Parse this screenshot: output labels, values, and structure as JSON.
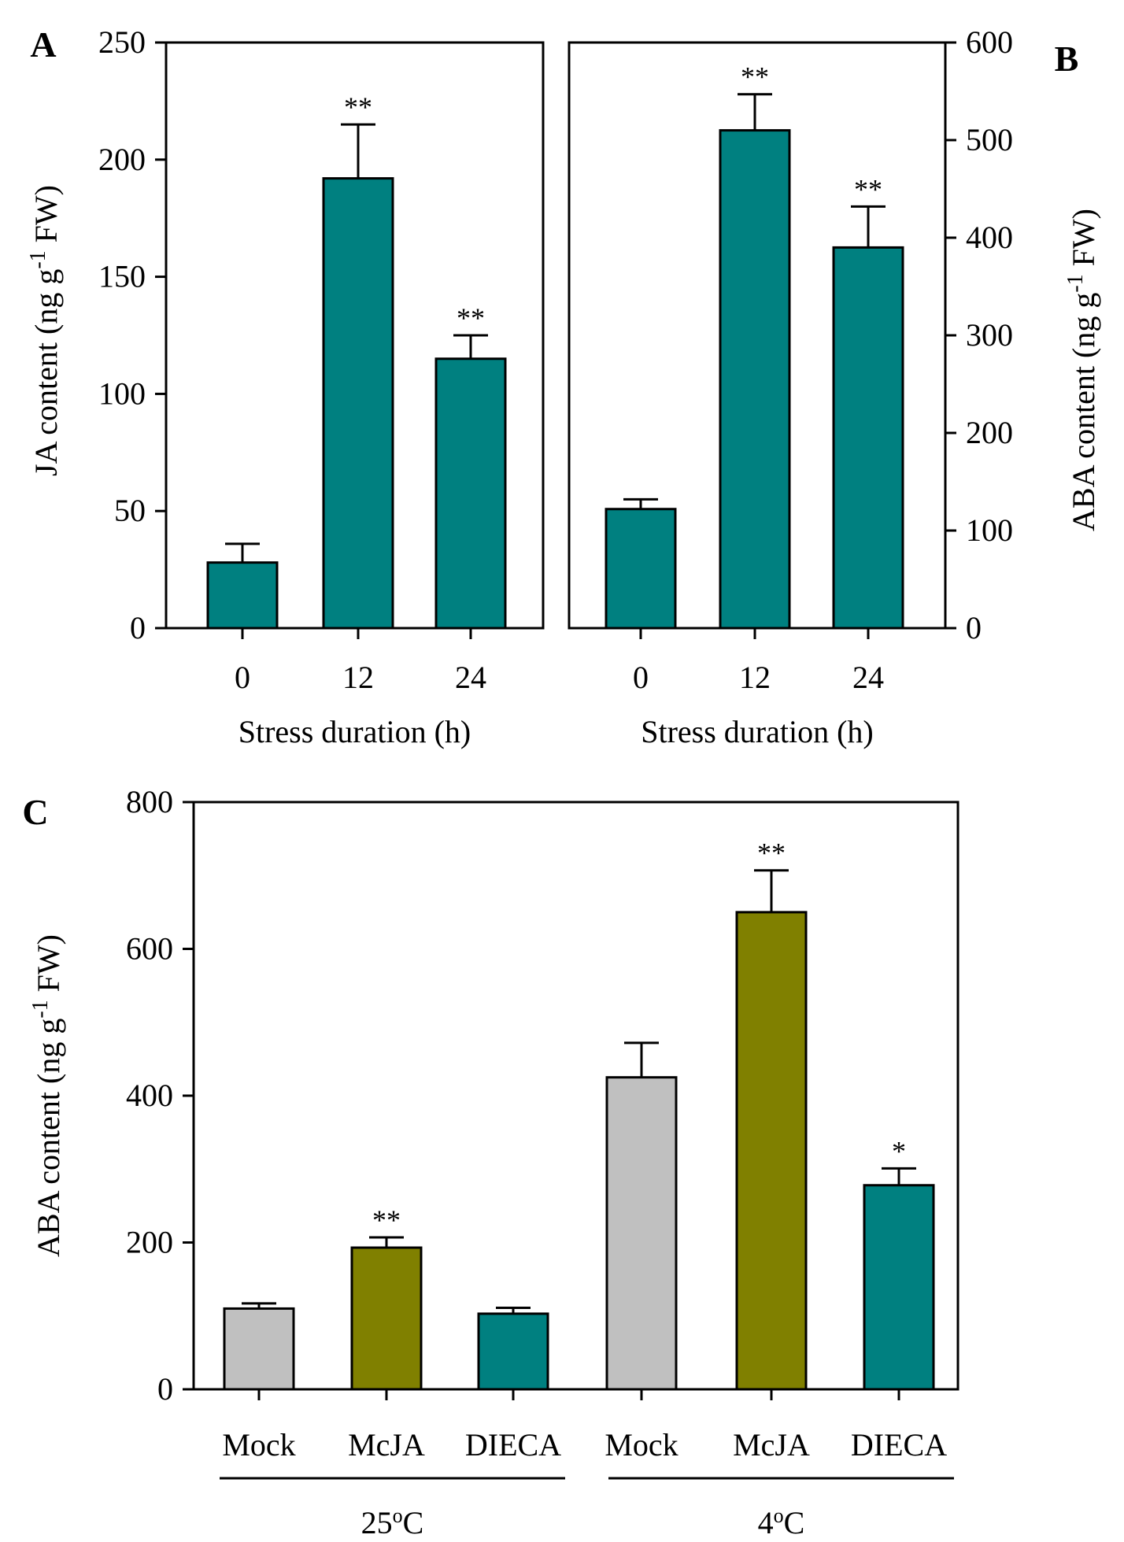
{
  "colors": {
    "teal": "#008080",
    "olive": "#808000",
    "gray": "#c0c0c0"
  },
  "chart_data": [
    {
      "panel": "A",
      "type": "bar",
      "categories": [
        "0",
        "12",
        "24"
      ],
      "values": [
        28,
        192,
        115
      ],
      "errors": [
        8,
        23,
        10
      ],
      "significance": [
        "",
        "**",
        "**"
      ],
      "bar_colors": [
        "teal",
        "teal",
        "teal"
      ],
      "yticks": [
        "0",
        "50",
        "100",
        "150",
        "200",
        "250"
      ],
      "ylim": [
        0,
        250
      ],
      "ylabel": "JA content (ng g",
      "ylabel_sup": "-1",
      "ylabel_tail": " FW)",
      "xlabel": "Stress duration (h)",
      "y_axis_side": "left"
    },
    {
      "panel": "B",
      "type": "bar",
      "categories": [
        "0",
        "12",
        "24"
      ],
      "values": [
        122,
        510,
        390
      ],
      "errors": [
        10,
        37,
        42
      ],
      "significance": [
        "",
        "**",
        "**"
      ],
      "bar_colors": [
        "teal",
        "teal",
        "teal"
      ],
      "yticks": [
        "0",
        "100",
        "200",
        "300",
        "400",
        "500",
        "600"
      ],
      "ylim": [
        0,
        600
      ],
      "ylabel": "ABA content (ng g",
      "ylabel_sup": "-1",
      "ylabel_tail": " FW)",
      "xlabel": "Stress duration (h)",
      "y_axis_side": "right"
    },
    {
      "panel": "C",
      "type": "bar",
      "categories": [
        "Mock",
        "McJA",
        "DIECA",
        "Mock",
        "McJA",
        "DIECA"
      ],
      "values": [
        110,
        193,
        103,
        425,
        650,
        278
      ],
      "errors": [
        7,
        14,
        8,
        47,
        57,
        23
      ],
      "significance": [
        "",
        "**",
        "",
        "",
        "**",
        "*"
      ],
      "bar_colors": [
        "gray",
        "olive",
        "teal",
        "gray",
        "olive",
        "teal"
      ],
      "yticks": [
        "0",
        "200",
        "400",
        "600",
        "800"
      ],
      "ylim": [
        0,
        800
      ],
      "ylabel": "ABA content (ng g",
      "ylabel_sup": "-1",
      "ylabel_tail": " FW)",
      "groups": [
        {
          "label": "25",
          "sup": "o",
          "unit": "C"
        },
        {
          "label": "4",
          "sup": "o",
          "unit": "C"
        }
      ],
      "y_axis_side": "left"
    }
  ]
}
